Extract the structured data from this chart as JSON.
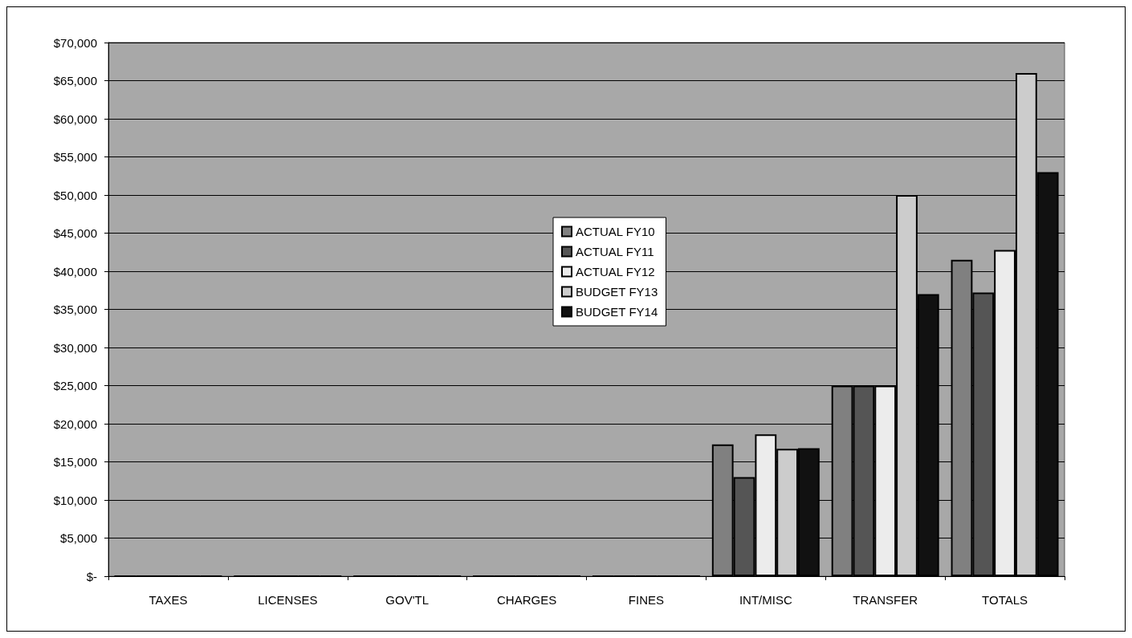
{
  "chart_data": {
    "type": "bar",
    "categories": [
      "TAXES",
      "LICENSES",
      "GOV'TL",
      "CHARGES",
      "FINES",
      "INT/MISC",
      "TRANSFER",
      "TOTALS"
    ],
    "series": [
      {
        "name": "ACTUAL FY10",
        "color": "#808080",
        "values": [
          0,
          0,
          0,
          0,
          0,
          17300,
          25000,
          41500
        ]
      },
      {
        "name": "ACTUAL FY11",
        "color": "#555555",
        "values": [
          0,
          0,
          0,
          0,
          0,
          13000,
          25000,
          37200
        ]
      },
      {
        "name": "ACTUAL FY12",
        "color": "#ececec",
        "values": [
          0,
          0,
          0,
          0,
          0,
          18600,
          25000,
          42800
        ]
      },
      {
        "name": "BUDGET FY13",
        "color": "#cccccc",
        "values": [
          0,
          0,
          0,
          0,
          0,
          16700,
          50000,
          66000
        ]
      },
      {
        "name": "BUDGET FY14",
        "color": "#111111",
        "values": [
          0,
          0,
          0,
          0,
          0,
          16800,
          37000,
          53000
        ]
      }
    ],
    "ylim": [
      0,
      70000
    ],
    "yticks": [
      {
        "value": 0,
        "label": "$-"
      },
      {
        "value": 5000,
        "label": "$5,000"
      },
      {
        "value": 10000,
        "label": "$10,000"
      },
      {
        "value": 15000,
        "label": "$15,000"
      },
      {
        "value": 20000,
        "label": "$20,000"
      },
      {
        "value": 25000,
        "label": "$25,000"
      },
      {
        "value": 30000,
        "label": "$30,000"
      },
      {
        "value": 35000,
        "label": "$35,000"
      },
      {
        "value": 40000,
        "label": "$40,000"
      },
      {
        "value": 45000,
        "label": "$45,000"
      },
      {
        "value": 50000,
        "label": "$50,000"
      },
      {
        "value": 55000,
        "label": "$55,000"
      },
      {
        "value": 60000,
        "label": "$60,000"
      },
      {
        "value": 65000,
        "label": "$65,000"
      },
      {
        "value": 70000,
        "label": "$70,000"
      }
    ],
    "grid": "y",
    "legend": "center"
  }
}
